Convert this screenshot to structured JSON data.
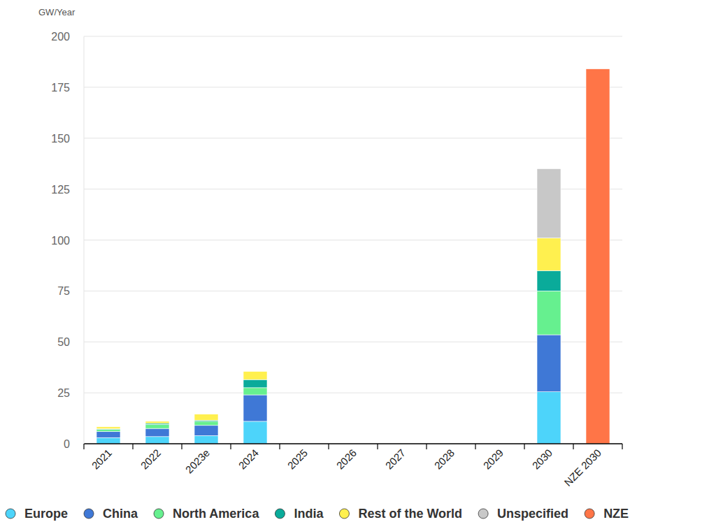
{
  "chart_data": {
    "type": "bar",
    "stacked": true,
    "y_label": "GW/Year",
    "categories": [
      "2021",
      "2022",
      "2023e",
      "2024",
      "2025",
      "2026",
      "2027",
      "2028",
      "2029",
      "2030",
      "NZE 2030"
    ],
    "series": [
      {
        "name": "Europe",
        "color": "#4dd4fa",
        "values": [
          3,
          3.5,
          4,
          11,
          null,
          null,
          null,
          null,
          null,
          25.5,
          null
        ]
      },
      {
        "name": "China",
        "color": "#3f78d6",
        "values": [
          3,
          4,
          5,
          13,
          null,
          null,
          null,
          null,
          null,
          28,
          null
        ]
      },
      {
        "name": "North America",
        "color": "#66f08f",
        "values": [
          1,
          2,
          2,
          3.5,
          null,
          null,
          null,
          null,
          null,
          21.5,
          null
        ]
      },
      {
        "name": "India",
        "color": "#0aab9a",
        "values": [
          0.3,
          0.5,
          0.5,
          4,
          null,
          null,
          null,
          null,
          null,
          10,
          null
        ]
      },
      {
        "name": "Rest of the World",
        "color": "#fff04f",
        "values": [
          1,
          1,
          3,
          4,
          null,
          null,
          null,
          null,
          null,
          16,
          null
        ]
      },
      {
        "name": "Unspecified",
        "color": "#c8c8c8",
        "values": [
          null,
          null,
          null,
          null,
          null,
          null,
          null,
          null,
          null,
          34,
          null
        ]
      },
      {
        "name": "NZE",
        "color": "#ff7547",
        "values": [
          null,
          null,
          null,
          null,
          null,
          null,
          null,
          null,
          null,
          null,
          184
        ]
      }
    ],
    "ylim": [
      0,
      200
    ],
    "yticks": [
      0,
      25,
      50,
      75,
      100,
      125,
      150,
      175,
      200
    ],
    "grid": true,
    "legend": "bottom"
  }
}
